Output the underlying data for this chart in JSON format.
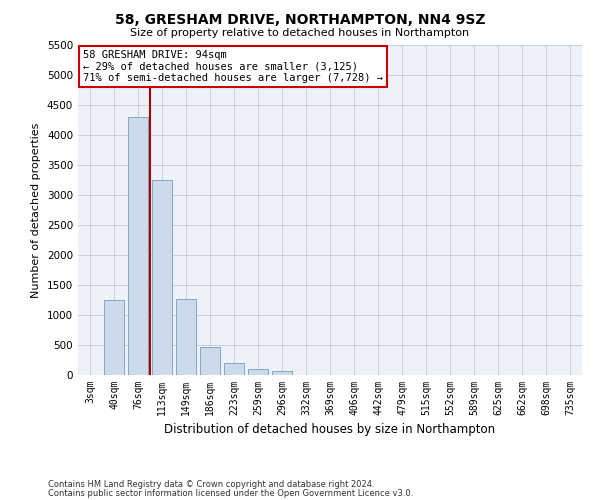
{
  "title": "58, GRESHAM DRIVE, NORTHAMPTON, NN4 9SZ",
  "subtitle": "Size of property relative to detached houses in Northampton",
  "xlabel": "Distribution of detached houses by size in Northampton",
  "ylabel": "Number of detached properties",
  "footer_line1": "Contains HM Land Registry data © Crown copyright and database right 2024.",
  "footer_line2": "Contains public sector information licensed under the Open Government Licence v3.0.",
  "bar_color": "#ccdaea",
  "bar_edge_color": "#7aaac8",
  "plot_bg_color": "#eef2f8",
  "grid_color": "#c5cfe0",
  "annotation_line_color": "#aa0000",
  "annotation_box_color": "#cc0000",
  "annotation_text": "58 GRESHAM DRIVE: 94sqm\n← 29% of detached houses are smaller (3,125)\n71% of semi-detached houses are larger (7,728) →",
  "categories": [
    "3sqm",
    "40sqm",
    "76sqm",
    "113sqm",
    "149sqm",
    "186sqm",
    "223sqm",
    "259sqm",
    "296sqm",
    "332sqm",
    "369sqm",
    "406sqm",
    "442sqm",
    "479sqm",
    "515sqm",
    "552sqm",
    "589sqm",
    "625sqm",
    "662sqm",
    "698sqm",
    "735sqm"
  ],
  "values": [
    0,
    1250,
    4300,
    3250,
    1275,
    475,
    200,
    100,
    75,
    0,
    0,
    0,
    0,
    0,
    0,
    0,
    0,
    0,
    0,
    0,
    0
  ],
  "ylim": [
    0,
    5500
  ],
  "yticks": [
    0,
    500,
    1000,
    1500,
    2000,
    2500,
    3000,
    3500,
    4000,
    4500,
    5000,
    5500
  ],
  "bar_width": 0.85,
  "red_line_x": 2.5,
  "figsize": [
    6.0,
    5.0
  ],
  "dpi": 100
}
